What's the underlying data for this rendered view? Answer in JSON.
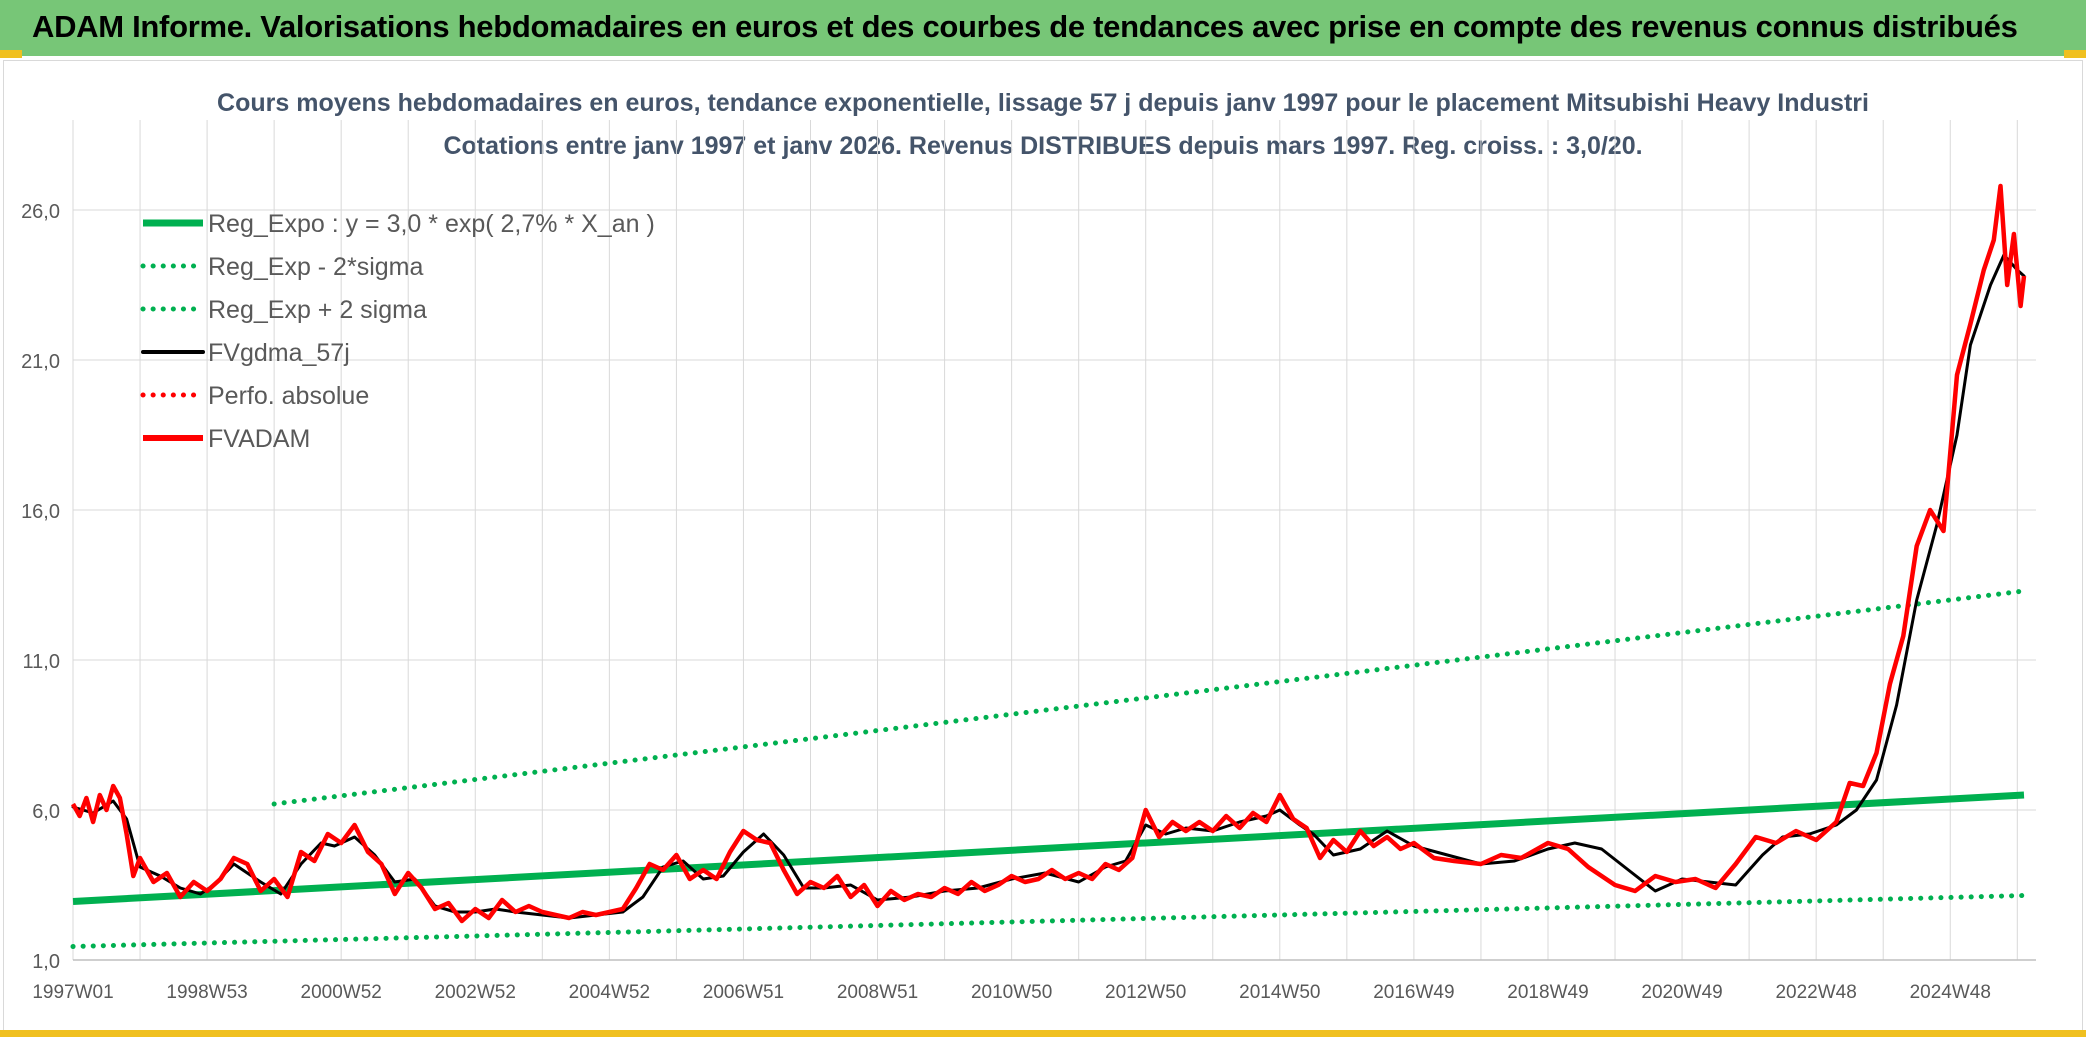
{
  "header": {
    "title": "ADAM Informe. Valorisations hebdomadaires en euros et des courbes de tendances avec prise en compte des revenus connus distribués"
  },
  "colors": {
    "banner": "#77c677",
    "title_text": "#44546a",
    "reg_expo": "#00b050",
    "reg_sigma": "#00b050",
    "fvgdma": "#000000",
    "perfo": "#ff0000",
    "fvadam": "#ff0000",
    "grid": "#d9d9d9"
  },
  "chart_data": {
    "type": "line",
    "title": "Cours moyens hebdomadaires en euros, tendance exponentielle, lissage 57 j depuis janv 1997 pour le placement Mitsubishi Heavy Industri",
    "subtitle": "Cotations entre janv 1997 et janv 2026. Revenus DISTRIBUES depuis mars 1997. Reg. croiss. : 3,0/20.",
    "xlabel": "",
    "ylabel": "",
    "x_range": [
      1997.0,
      2026.1
    ],
    "ylim": [
      1.0,
      28.0
    ],
    "y_ticks": [
      "1,0",
      "6,0",
      "11,0",
      "16,0",
      "21,0",
      "26,0"
    ],
    "y_tick_values": [
      1,
      6,
      11,
      16,
      21,
      26
    ],
    "x_tick_labels": [
      "1997W01",
      "1998W53",
      "2000W52",
      "2002W52",
      "2004W52",
      "2006W51",
      "2008W51",
      "2010W50",
      "2012W50",
      "2014W50",
      "2016W49",
      "2018W49",
      "2020W49",
      "2022W48",
      "2024W48"
    ],
    "x_tick_values": [
      1997.0,
      1999.0,
      2001.0,
      2003.0,
      2005.0,
      2007.0,
      2009.0,
      2011.0,
      2013.0,
      2015.0,
      2017.0,
      2019.0,
      2021.0,
      2023.0,
      2025.0
    ],
    "legend_position": "top-left",
    "series": [
      {
        "name": "Reg_Expo : y = 3,0 * exp( 2,7% *  X_an )",
        "style": "solid-thick",
        "color": "#00b050",
        "x": [
          1997.0,
          2026.1
        ],
        "values": [
          2.95,
          6.5
        ]
      },
      {
        "name": "Reg_Exp - 2*sigma",
        "style": "dotted",
        "color": "#00b050",
        "x": [
          1997.0,
          2026.1
        ],
        "values": [
          1.45,
          3.15
        ]
      },
      {
        "name": "Reg_Exp + 2 sigma",
        "style": "dotted",
        "color": "#00b050",
        "x": [
          2000.0,
          2026.1
        ],
        "values": [
          6.2,
          13.3
        ]
      },
      {
        "name": "FVgdma_57j",
        "style": "solid",
        "color": "#000000",
        "x": [
          1997.0,
          1997.3,
          1997.6,
          1997.8,
          1998.0,
          1998.3,
          1998.6,
          1998.9,
          1999.1,
          1999.4,
          1999.8,
          2000.1,
          2000.4,
          2000.7,
          2000.9,
          2001.2,
          2001.5,
          2001.8,
          2002.1,
          2002.4,
          2002.7,
          2003.0,
          2003.3,
          2003.6,
          2004.0,
          2004.4,
          2004.8,
          2005.2,
          2005.5,
          2005.8,
          2006.1,
          2006.4,
          2006.7,
          2007.0,
          2007.3,
          2007.6,
          2007.9,
          2008.2,
          2008.6,
          2009.0,
          2009.5,
          2010.0,
          2010.5,
          2011.0,
          2011.5,
          2012.0,
          2012.4,
          2012.7,
          2013.0,
          2013.3,
          2013.6,
          2014.0,
          2014.4,
          2014.8,
          2015.0,
          2015.3,
          2015.5,
          2015.8,
          2016.2,
          2016.6,
          2017.0,
          2017.5,
          2018.0,
          2018.5,
          2019.0,
          2019.4,
          2019.8,
          2020.2,
          2020.6,
          2021.0,
          2021.4,
          2021.8,
          2022.2,
          2022.5,
          2022.9,
          2023.3,
          2023.6,
          2023.9,
          2024.2,
          2024.5,
          2024.8,
          2025.1,
          2025.3,
          2025.6,
          2025.8,
          2026.0,
          2026.1
        ],
        "values": [
          6.1,
          5.9,
          6.3,
          5.7,
          4.1,
          3.8,
          3.4,
          3.2,
          3.5,
          4.2,
          3.6,
          3.2,
          4.2,
          4.9,
          4.8,
          5.1,
          4.5,
          3.6,
          3.7,
          2.8,
          2.6,
          2.6,
          2.7,
          2.6,
          2.5,
          2.4,
          2.5,
          2.6,
          3.1,
          4.1,
          4.3,
          3.7,
          3.8,
          4.6,
          5.2,
          4.5,
          3.4,
          3.4,
          3.5,
          3.0,
          3.1,
          3.3,
          3.4,
          3.7,
          3.9,
          3.6,
          4.1,
          4.3,
          5.5,
          5.2,
          5.4,
          5.3,
          5.6,
          5.8,
          6.0,
          5.5,
          5.2,
          4.5,
          4.7,
          5.3,
          4.8,
          4.5,
          4.2,
          4.3,
          4.7,
          4.9,
          4.7,
          4.0,
          3.3,
          3.7,
          3.6,
          3.5,
          4.5,
          5.1,
          5.2,
          5.5,
          6.0,
          7.0,
          9.5,
          13.0,
          15.5,
          18.5,
          21.5,
          23.5,
          24.5,
          24.0,
          23.8
        ]
      },
      {
        "name": "Perfo. absolue",
        "style": "dotted",
        "color": "#ff0000",
        "x": [],
        "values": []
      },
      {
        "name": "FVADAM",
        "style": "solid-thick",
        "color": "#ff0000",
        "x": [
          1997.0,
          1997.1,
          1997.2,
          1997.3,
          1997.4,
          1997.5,
          1997.6,
          1997.7,
          1997.8,
          1997.9,
          1998.0,
          1998.2,
          1998.4,
          1998.6,
          1998.8,
          1999.0,
          1999.2,
          1999.4,
          1999.6,
          1999.8,
          2000.0,
          2000.2,
          2000.4,
          2000.6,
          2000.8,
          2001.0,
          2001.2,
          2001.4,
          2001.6,
          2001.8,
          2002.0,
          2002.2,
          2002.4,
          2002.6,
          2002.8,
          2003.0,
          2003.2,
          2003.4,
          2003.6,
          2003.8,
          2004.0,
          2004.2,
          2004.4,
          2004.6,
          2004.8,
          2005.0,
          2005.2,
          2005.4,
          2005.6,
          2005.8,
          2006.0,
          2006.2,
          2006.4,
          2006.6,
          2006.8,
          2007.0,
          2007.2,
          2007.4,
          2007.6,
          2007.8,
          2008.0,
          2008.2,
          2008.4,
          2008.6,
          2008.8,
          2009.0,
          2009.2,
          2009.4,
          2009.6,
          2009.8,
          2010.0,
          2010.2,
          2010.4,
          2010.6,
          2010.8,
          2011.0,
          2011.2,
          2011.4,
          2011.6,
          2011.8,
          2012.0,
          2012.2,
          2012.4,
          2012.6,
          2012.8,
          2013.0,
          2013.2,
          2013.4,
          2013.6,
          2013.8,
          2014.0,
          2014.2,
          2014.4,
          2014.6,
          2014.8,
          2015.0,
          2015.2,
          2015.4,
          2015.6,
          2015.8,
          2016.0,
          2016.2,
          2016.4,
          2016.6,
          2016.8,
          2017.0,
          2017.3,
          2017.6,
          2018.0,
          2018.3,
          2018.6,
          2019.0,
          2019.3,
          2019.6,
          2020.0,
          2020.3,
          2020.6,
          2020.9,
          2021.2,
          2021.5,
          2021.8,
          2022.1,
          2022.4,
          2022.7,
          2023.0,
          2023.3,
          2023.5,
          2023.7,
          2023.9,
          2024.1,
          2024.3,
          2024.5,
          2024.7,
          2024.9,
          2025.1,
          2025.3,
          2025.5,
          2025.65,
          2025.75,
          2025.85,
          2025.95,
          2026.05,
          2026.1
        ],
        "values": [
          6.2,
          5.8,
          6.4,
          5.6,
          6.5,
          6.0,
          6.8,
          6.4,
          5.2,
          3.8,
          4.4,
          3.6,
          3.9,
          3.1,
          3.6,
          3.3,
          3.7,
          4.4,
          4.2,
          3.3,
          3.7,
          3.1,
          4.6,
          4.3,
          5.2,
          4.9,
          5.5,
          4.6,
          4.2,
          3.2,
          3.9,
          3.4,
          2.7,
          2.9,
          2.3,
          2.7,
          2.4,
          3.0,
          2.6,
          2.8,
          2.6,
          2.5,
          2.4,
          2.6,
          2.5,
          2.6,
          2.7,
          3.4,
          4.2,
          4.0,
          4.5,
          3.7,
          4.0,
          3.7,
          4.6,
          5.3,
          5.0,
          4.9,
          4.0,
          3.2,
          3.6,
          3.4,
          3.8,
          3.1,
          3.5,
          2.8,
          3.3,
          3.0,
          3.2,
          3.1,
          3.4,
          3.2,
          3.6,
          3.3,
          3.5,
          3.8,
          3.6,
          3.7,
          4.0,
          3.7,
          3.9,
          3.7,
          4.2,
          4.0,
          4.4,
          6.0,
          5.1,
          5.6,
          5.3,
          5.6,
          5.3,
          5.8,
          5.4,
          5.9,
          5.6,
          6.5,
          5.7,
          5.4,
          4.4,
          5.0,
          4.6,
          5.3,
          4.8,
          5.1,
          4.7,
          4.9,
          4.4,
          4.3,
          4.2,
          4.5,
          4.4,
          4.9,
          4.7,
          4.1,
          3.5,
          3.3,
          3.8,
          3.6,
          3.7,
          3.4,
          4.2,
          5.1,
          4.9,
          5.3,
          5.0,
          5.6,
          6.9,
          6.8,
          7.9,
          10.2,
          11.8,
          14.8,
          16.0,
          15.3,
          20.5,
          22.2,
          24.0,
          25.0,
          26.8,
          23.5,
          25.2,
          22.8,
          23.8
        ]
      }
    ]
  }
}
